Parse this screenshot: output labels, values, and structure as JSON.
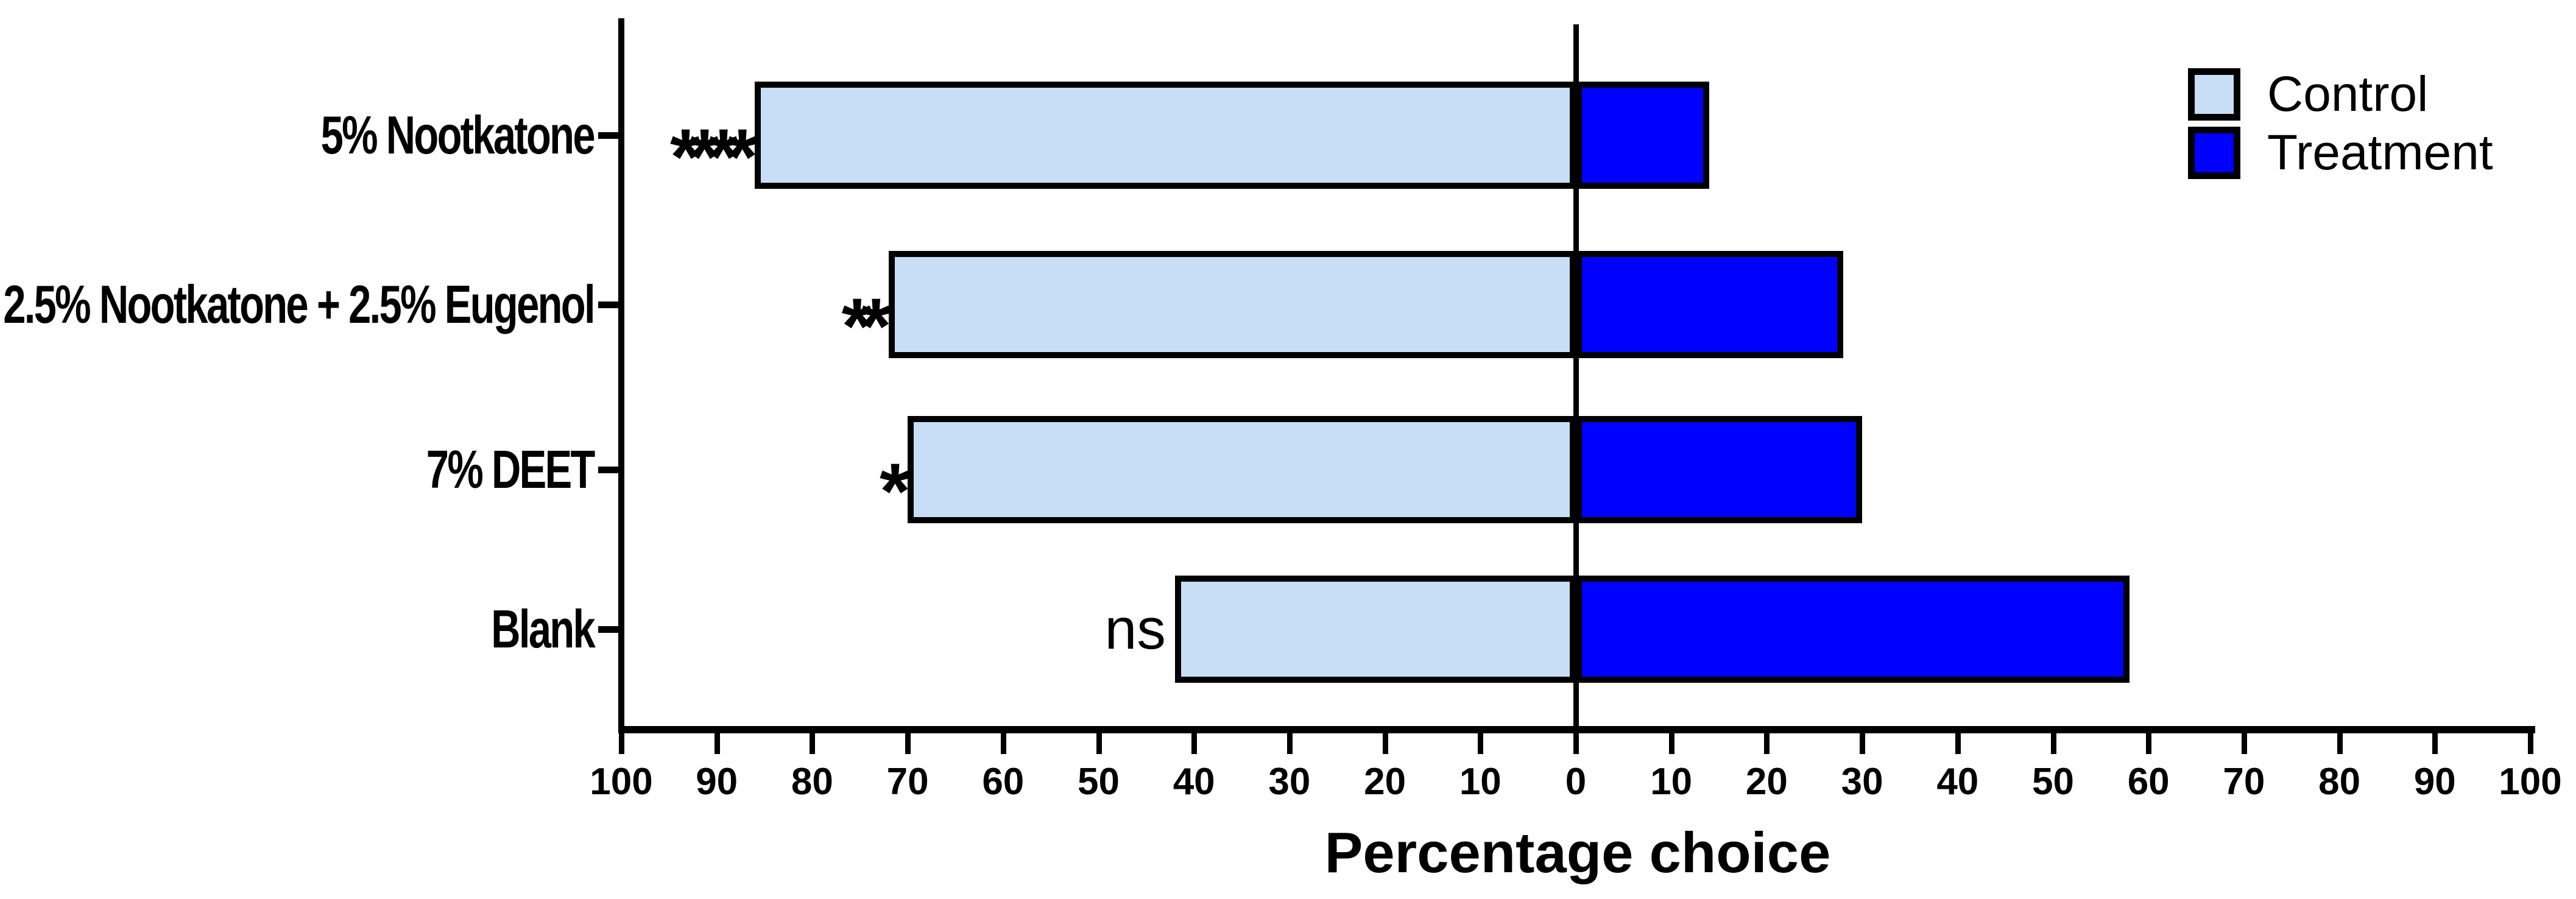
{
  "figure": {
    "background_color": "#FFFFFF",
    "axis_color": "#000000",
    "text_color": "#000000"
  },
  "chart_data": {
    "type": "bar",
    "variant": "horizontal-diverging",
    "title": "",
    "xlabel": "Percentage choice",
    "ylabel": "",
    "grid": false,
    "legend_position": "top-right",
    "x_axis": {
      "min": -100,
      "max": 100,
      "tick_step": 10,
      "tick_labels": [
        "100",
        "90",
        "80",
        "70",
        "60",
        "50",
        "40",
        "30",
        "20",
        "10",
        "0",
        "10",
        "20",
        "30",
        "40",
        "50",
        "60",
        "70",
        "80",
        "90",
        "100"
      ],
      "note": "both sides of the zero line show absolute percentage"
    },
    "categories": [
      "5% Nootkatone",
      "2.5% Nootkatone + 2.5% Eugenol",
      "7% DEET",
      "Blank"
    ],
    "series": [
      {
        "name": "Control",
        "side": "left",
        "color": "#C8DEF6",
        "border_color": "#000000",
        "values": [
          86,
          72,
          70,
          42
        ]
      },
      {
        "name": "Treatment",
        "side": "right",
        "color": "#0000FF",
        "border_color": "#000000",
        "values": [
          14,
          28,
          30,
          58
        ]
      }
    ],
    "significance_markers": [
      {
        "category": "5% Nootkatone",
        "label": "****"
      },
      {
        "category": "2.5% Nootkatone + 2.5% Eugenol",
        "label": "**"
      },
      {
        "category": "7% DEET",
        "label": "*"
      },
      {
        "category": "Blank",
        "label": "ns"
      }
    ]
  },
  "legend": {
    "items": [
      {
        "label": "Control",
        "color": "#C8DEF6"
      },
      {
        "label": "Treatment",
        "color": "#0000FF"
      }
    ]
  }
}
